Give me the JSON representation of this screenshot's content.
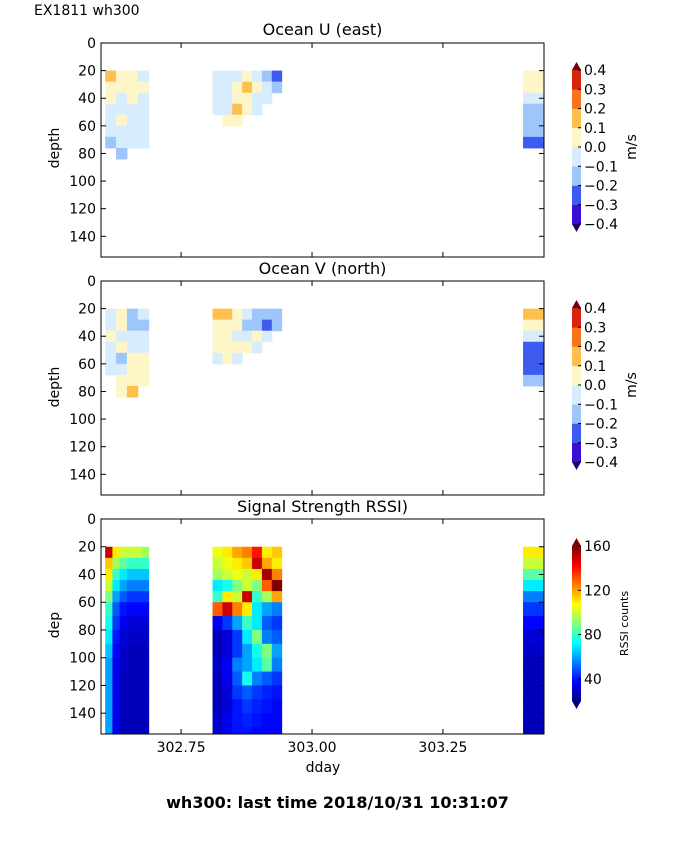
{
  "figure": {
    "suptitle": "EX1811 wh300",
    "footer": "wh300: last time 2018/10/31 10:31:07",
    "xlabel": "dday"
  },
  "chart_data": [
    {
      "type": "heatmap",
      "title": "Ocean U (east)",
      "ylabel": "depth",
      "xlim": [
        302.597,
        303.443
      ],
      "ylim": [
        155,
        0
      ],
      "yticks": [
        0,
        20,
        40,
        60,
        80,
        100,
        120,
        140
      ],
      "xticks": [
        302.75,
        303.0,
        303.25
      ],
      "xtick_labels_shown": false,
      "colorbar": {
        "label": "m/s",
        "levels": [
          -0.4,
          -0.3,
          -0.2,
          -0.1,
          0.0,
          0.1,
          0.2,
          0.3,
          0.4
        ],
        "tick_labels": [
          "0.4",
          "0.3",
          "0.2",
          "0.1",
          "0.0",
          "−0.1",
          "−0.2",
          "−0.3",
          "−0.4"
        ],
        "colors": [
          "#3b0fd6",
          "#3d5bf0",
          "#9ec6fa",
          "#d7ecfc",
          "#fff6c8",
          "#fdc04f",
          "#f7741c",
          "#d8240c"
        ],
        "extend_colors": [
          "#2a0070",
          "#700012"
        ]
      },
      "blocks": [
        {
          "x0": 302.605,
          "x1": 302.688,
          "depths": [
            20,
            28,
            36,
            44,
            52,
            60,
            68,
            76
          ],
          "values": [
            [
              0.12,
              0.05,
              0.02,
              -0.05
            ],
            [
              0.05,
              0.04,
              0.03,
              0.05
            ],
            [
              0.03,
              -0.05,
              0.05,
              -0.05
            ],
            [
              -0.05,
              -0.05,
              -0.05,
              -0.05
            ],
            [
              -0.05,
              0.05,
              -0.05,
              -0.05
            ],
            [
              -0.05,
              -0.05,
              -0.05,
              -0.05
            ],
            [
              -0.15,
              -0.05,
              -0.05,
              -0.05
            ],
            [
              null,
              -0.15,
              null,
              null
            ]
          ]
        },
        {
          "x0": 302.81,
          "x1": 302.942,
          "depths": [
            20,
            28,
            36,
            44,
            52
          ],
          "values": [
            [
              -0.05,
              -0.05,
              -0.05,
              0.05,
              -0.05,
              -0.15,
              -0.25
            ],
            [
              -0.05,
              -0.05,
              0.05,
              0.12,
              0.03,
              -0.05,
              -0.15
            ],
            [
              -0.05,
              -0.05,
              0.05,
              0.05,
              -0.05,
              -0.05,
              null
            ],
            [
              -0.05,
              -0.05,
              0.12,
              0.05,
              -0.05,
              null,
              null
            ],
            [
              null,
              0.05,
              0.05,
              null,
              null,
              null,
              null
            ]
          ]
        },
        {
          "x0": 303.403,
          "x1": 303.443,
          "depths": [
            20,
            28,
            36,
            44,
            52,
            60,
            68
          ],
          "values": [
            [
              0.05
            ],
            [
              0.05
            ],
            [
              -0.05
            ],
            [
              -0.15
            ],
            [
              -0.15
            ],
            [
              -0.15
            ],
            [
              -0.25
            ]
          ]
        }
      ]
    },
    {
      "type": "heatmap",
      "title": "Ocean V (north)",
      "ylabel": "depth",
      "xlim": [
        302.597,
        303.443
      ],
      "ylim": [
        155,
        0
      ],
      "yticks": [
        0,
        20,
        40,
        60,
        80,
        100,
        120,
        140
      ],
      "xticks": [
        302.75,
        303.0,
        303.25
      ],
      "xtick_labels_shown": false,
      "colorbar": {
        "label": "m/s",
        "levels": [
          -0.4,
          -0.3,
          -0.2,
          -0.1,
          0.0,
          0.1,
          0.2,
          0.3,
          0.4
        ],
        "tick_labels": [
          "0.4",
          "0.3",
          "0.2",
          "0.1",
          "0.0",
          "−0.1",
          "−0.2",
          "−0.3",
          "−0.4"
        ],
        "colors": [
          "#3b0fd6",
          "#3d5bf0",
          "#9ec6fa",
          "#d7ecfc",
          "#fff6c8",
          "#fdc04f",
          "#f7741c",
          "#d8240c"
        ],
        "extend_colors": [
          "#2a0070",
          "#700012"
        ]
      },
      "blocks": [
        {
          "x0": 302.605,
          "x1": 302.688,
          "depths": [
            20,
            28,
            36,
            44,
            52,
            60,
            68,
            76
          ],
          "values": [
            [
              -0.05,
              0.05,
              -0.15,
              -0.05
            ],
            [
              -0.05,
              0.05,
              -0.15,
              -0.15
            ],
            [
              0.05,
              -0.05,
              -0.05,
              -0.05
            ],
            [
              -0.05,
              0.05,
              -0.05,
              -0.05
            ],
            [
              -0.05,
              -0.15,
              0.05,
              0.05
            ],
            [
              -0.05,
              -0.05,
              0.05,
              0.05
            ],
            [
              null,
              0.05,
              0.05,
              0.05
            ],
            [
              null,
              0.05,
              0.12,
              null
            ]
          ]
        },
        {
          "x0": 302.81,
          "x1": 302.942,
          "depths": [
            20,
            28,
            36,
            44,
            52
          ],
          "values": [
            [
              0.12,
              0.12,
              0.05,
              -0.05,
              -0.15,
              -0.15,
              -0.15
            ],
            [
              0.05,
              0.05,
              0.05,
              -0.15,
              -0.15,
              -0.25,
              -0.15
            ],
            [
              0.05,
              0.05,
              -0.05,
              -0.05,
              0.05,
              -0.05,
              null
            ],
            [
              0.05,
              0.05,
              0.05,
              0.05,
              -0.05,
              null,
              null
            ],
            [
              -0.05,
              0.05,
              -0.05,
              null,
              null,
              null,
              null
            ]
          ]
        },
        {
          "x0": 303.403,
          "x1": 303.443,
          "depths": [
            20,
            28,
            36,
            44,
            52,
            60,
            68
          ],
          "values": [
            [
              0.12
            ],
            [
              0.05
            ],
            [
              -0.05
            ],
            [
              -0.25
            ],
            [
              -0.25
            ],
            [
              -0.25
            ],
            [
              -0.15
            ]
          ]
        }
      ]
    },
    {
      "type": "heatmap",
      "title": "Signal Strength RSSI)",
      "ylabel": "dep",
      "xlabel": "dday",
      "xlim": [
        302.597,
        303.443
      ],
      "ylim": [
        155,
        0
      ],
      "yticks": [
        0,
        20,
        40,
        60,
        80,
        100,
        120,
        140
      ],
      "xticks": [
        302.75,
        303.0,
        303.25
      ],
      "xtick_labels": [
        "302.75",
        "303.00",
        "303.25"
      ],
      "colorbar": {
        "label": "RSSI counts",
        "range": [
          20,
          160
        ],
        "ticks": [
          40,
          80,
          120,
          160
        ],
        "tick_labels": [
          "40",
          "80",
          "120",
          "160"
        ],
        "colormap": "jet"
      },
      "blocks": [
        {
          "x0": 302.605,
          "x1": 302.688,
          "depths": [
            20,
            28,
            36,
            44,
            52,
            60,
            70,
            80,
            90,
            100,
            110,
            120,
            130,
            140,
            150
          ],
          "values": [
            [
              150,
              110,
              100,
              100,
              100,
              95
            ],
            [
              115,
              95,
              85,
              80,
              80,
              80
            ],
            [
              110,
              80,
              70,
              65,
              65,
              65
            ],
            [
              100,
              70,
              60,
              55,
              55,
              55
            ],
            [
              90,
              60,
              50,
              45,
              45,
              45
            ],
            [
              80,
              50,
              40,
              38,
              38,
              38
            ],
            [
              75,
              45,
              35,
              32,
              32,
              32
            ],
            [
              70,
              40,
              32,
              30,
              30,
              30
            ],
            [
              65,
              38,
              30,
              28,
              28,
              28
            ],
            [
              60,
              35,
              30,
              28,
              28,
              28
            ],
            [
              60,
              35,
              28,
              28,
              28,
              28
            ],
            [
              60,
              35,
              28,
              28,
              28,
              28
            ],
            [
              60,
              35,
              28,
              28,
              28,
              28
            ],
            [
              60,
              35,
              28,
              28,
              28,
              28
            ],
            [
              60,
              35,
              28,
              28,
              28,
              28
            ]
          ]
        },
        {
          "x0": 302.81,
          "x1": 302.942,
          "depths": [
            20,
            28,
            36,
            44,
            52,
            60,
            70,
            80,
            90,
            100,
            110,
            120,
            130,
            140,
            150
          ],
          "values": [
            [
              105,
              110,
              120,
              125,
              140,
              110,
              115
            ],
            [
              100,
              105,
              110,
              115,
              150,
              120,
              110
            ],
            [
              95,
              100,
              105,
              100,
              110,
              155,
              125
            ],
            [
              70,
              75,
              90,
              100,
              90,
              130,
              160
            ],
            [
              80,
              110,
              100,
              150,
              80,
              95,
              120
            ],
            [
              130,
              150,
              125,
              110,
              70,
              60,
              55
            ],
            [
              35,
              45,
              60,
              80,
              70,
              50,
              45
            ],
            [
              28,
              32,
              45,
              70,
              90,
              55,
              50
            ],
            [
              28,
              32,
              45,
              60,
              75,
              90,
              60
            ],
            [
              30,
              35,
              55,
              60,
              70,
              85,
              55
            ],
            [
              28,
              35,
              50,
              75,
              55,
              50,
              45
            ],
            [
              28,
              32,
              45,
              50,
              45,
              42,
              40
            ],
            [
              28,
              32,
              40,
              45,
              42,
              40,
              38
            ],
            [
              30,
              35,
              40,
              42,
              40,
              38,
              38
            ],
            [
              30,
              35,
              40,
              40,
              38,
              38,
              38
            ]
          ]
        },
        {
          "x0": 303.403,
          "x1": 303.443,
          "depths": [
            20,
            28,
            36,
            44,
            52,
            60,
            70,
            80,
            90,
            100,
            110,
            120,
            130,
            140,
            150
          ],
          "values": [
            [
              110
            ],
            [
              100
            ],
            [
              85
            ],
            [
              70
            ],
            [
              55
            ],
            [
              45
            ],
            [
              38
            ],
            [
              32
            ],
            [
              30
            ],
            [
              28
            ],
            [
              28
            ],
            [
              28
            ],
            [
              28
            ],
            [
              28
            ],
            [
              28
            ]
          ]
        }
      ]
    }
  ]
}
